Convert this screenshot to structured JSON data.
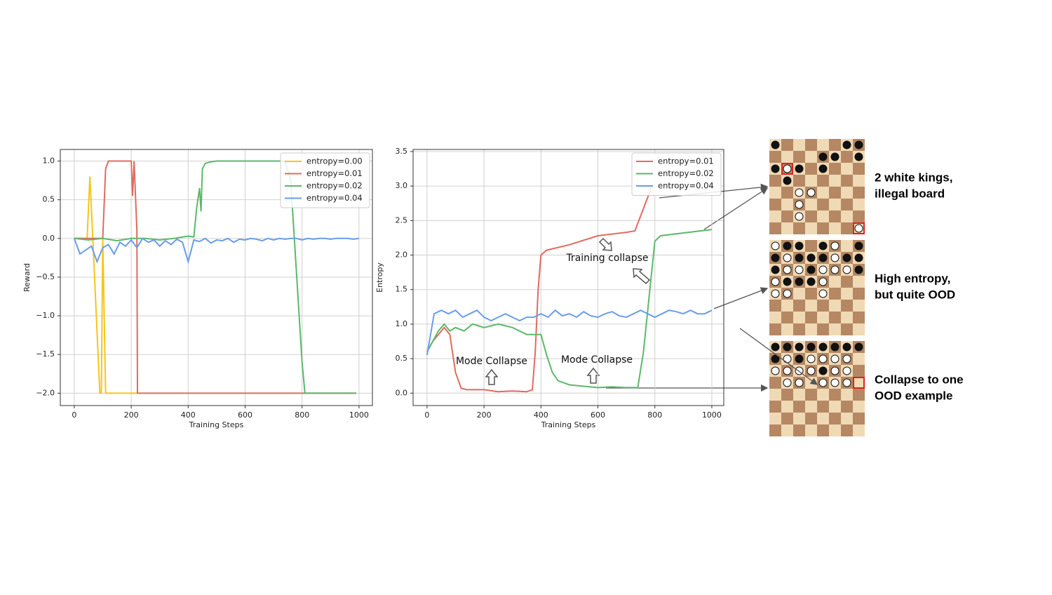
{
  "chart_data": [
    {
      "type": "line",
      "xlabel": "Training Steps",
      "ylabel": "Reward",
      "xlim": [
        -49,
        1047
      ],
      "ylim": [
        -2.16,
        1.15
      ],
      "xticks": [
        0,
        200,
        400,
        600,
        800,
        1000
      ],
      "yticks": [
        {
          "value": -2,
          "label": "−2.0"
        },
        {
          "value": -1.5,
          "label": "−1.5"
        },
        {
          "value": -1,
          "label": "−1.0"
        },
        {
          "value": -0.5,
          "label": "−0.5"
        },
        {
          "value": 0,
          "label": "0.0"
        },
        0.5,
        {
          "value": 1,
          "label": "1.0"
        }
      ],
      "grid": true,
      "legend": "upper right",
      "series": [
        {
          "name": "entropy=0.00",
          "color": "#f5c518",
          "x": [
            0,
            45,
            55,
            65,
            90,
            95,
            100,
            110,
            220
          ],
          "values": [
            0,
            0,
            0.8,
            0,
            -2,
            -2,
            0,
            -2,
            -2
          ]
        },
        {
          "name": "entropy=0.01",
          "color": "#e06b5f",
          "x": [
            0,
            90,
            100,
            110,
            120,
            140,
            200,
            205,
            210,
            220,
            222,
            990
          ],
          "values": [
            0,
            0,
            0,
            0.9,
            1,
            1,
            1,
            0.55,
            1,
            0.1,
            -2,
            -2
          ]
        },
        {
          "name": "entropy=0.02",
          "color": "#5cb86a",
          "x": [
            0,
            50,
            100,
            150,
            200,
            250,
            300,
            350,
            400,
            420,
            430,
            440,
            445,
            450,
            460,
            480,
            500,
            600,
            700,
            740,
            760,
            800,
            810,
            990
          ],
          "values": [
            0,
            -0.02,
            0,
            -0.03,
            0,
            0,
            -0.02,
            0,
            0.03,
            0.02,
            0.4,
            0.65,
            0.35,
            0.9,
            0.97,
            0.99,
            1,
            1,
            1,
            1,
            0.75,
            -1.6,
            -2,
            -2
          ]
        },
        {
          "name": "entropy=0.04",
          "color": "#6a9cea",
          "x": [
            0,
            20,
            40,
            60,
            80,
            100,
            120,
            140,
            160,
            180,
            200,
            220,
            240,
            260,
            280,
            300,
            320,
            340,
            360,
            380,
            400,
            420,
            440,
            460,
            480,
            500,
            520,
            540,
            560,
            580,
            600,
            620,
            640,
            660,
            680,
            700,
            720,
            740,
            760,
            780,
            800,
            820,
            840,
            860,
            880,
            900,
            920,
            940,
            960,
            980,
            1000
          ],
          "values": [
            0,
            -0.2,
            -0.15,
            -0.1,
            -0.3,
            -0.12,
            -0.08,
            -0.2,
            -0.05,
            -0.1,
            -0.02,
            -0.12,
            0,
            -0.05,
            -0.02,
            -0.1,
            -0.03,
            -0.08,
            -0.01,
            -0.05,
            -0.3,
            -0.02,
            -0.04,
            0,
            -0.06,
            -0.02,
            -0.03,
            0,
            -0.05,
            -0.01,
            -0.02,
            0,
            -0.01,
            -0.03,
            0,
            -0.02,
            0,
            -0.01,
            0,
            0,
            -0.02,
            0,
            -0.01,
            0,
            0,
            -0.01,
            0,
            0,
            0,
            -0.01,
            0
          ]
        }
      ]
    },
    {
      "type": "line",
      "xlabel": "Training Steps",
      "ylabel": "Entropy",
      "xlim": [
        -49,
        1042
      ],
      "ylim": [
        -0.18,
        3.53
      ],
      "xticks": [
        0,
        200,
        400,
        600,
        800,
        1000
      ],
      "yticks": [
        {
          "value": 0,
          "label": "0.0"
        },
        0.5,
        {
          "value": 1,
          "label": "1.0"
        },
        1.5,
        {
          "value": 2,
          "label": "2.0"
        },
        2.5,
        {
          "value": 3,
          "label": "3.0"
        },
        3.5
      ],
      "grid": true,
      "legend": "upper right",
      "annotations": [
        "Mode Collapse",
        "Mode Collapse",
        "Training collapse"
      ],
      "series": [
        {
          "name": "entropy=0.01",
          "color": "#e06b5f",
          "x": [
            0,
            20,
            40,
            60,
            80,
            100,
            120,
            140,
            200,
            250,
            300,
            350,
            370,
            380,
            390,
            400,
            420,
            500,
            600,
            700,
            730,
            790
          ],
          "values": [
            0.6,
            0.75,
            0.85,
            0.95,
            0.85,
            0.3,
            0.07,
            0.05,
            0.05,
            0.02,
            0.03,
            0.02,
            0.05,
            0.6,
            1.5,
            2,
            2.07,
            2.15,
            2.28,
            2.33,
            2.35,
            3
          ]
        },
        {
          "name": "entropy=0.02",
          "color": "#5cb86a",
          "x": [
            0,
            20,
            40,
            60,
            80,
            100,
            130,
            160,
            200,
            250,
            300,
            350,
            400,
            420,
            440,
            460,
            500,
            550,
            600,
            650,
            700,
            720,
            740,
            760,
            780,
            800,
            820,
            1000
          ],
          "values": [
            0.6,
            0.75,
            0.9,
            1,
            0.9,
            0.95,
            0.9,
            1,
            0.95,
            1,
            0.95,
            0.85,
            0.85,
            0.55,
            0.3,
            0.18,
            0.12,
            0.1,
            0.08,
            0.09,
            0.08,
            0.08,
            0.08,
            0.6,
            1.4,
            2.2,
            2.28,
            2.37
          ]
        },
        {
          "name": "entropy=0.04",
          "color": "#6a9cea",
          "x": [
            0,
            25,
            50,
            75,
            100,
            125,
            150,
            175,
            200,
            225,
            250,
            275,
            300,
            325,
            350,
            375,
            400,
            425,
            450,
            475,
            500,
            525,
            550,
            575,
            600,
            625,
            650,
            675,
            700,
            725,
            750,
            775,
            800,
            825,
            850,
            875,
            900,
            925,
            950,
            975,
            1000
          ],
          "values": [
            0.55,
            1.15,
            1.2,
            1.15,
            1.2,
            1.1,
            1.15,
            1.2,
            1.1,
            1.05,
            1.1,
            1.15,
            1.1,
            1.05,
            1.1,
            1.1,
            1.15,
            1.1,
            1.2,
            1.12,
            1.15,
            1.1,
            1.18,
            1.12,
            1.1,
            1.15,
            1.18,
            1.12,
            1.1,
            1.15,
            1.2,
            1.15,
            1.1,
            1.15,
            1.2,
            1.18,
            1.15,
            1.2,
            1.15,
            1.15,
            1.2
          ]
        }
      ]
    }
  ],
  "board_captions": [
    [
      "2 white kings,",
      "illegal board"
    ],
    [
      "High entropy,",
      "but quite OOD"
    ],
    [
      "Collapse to one",
      "OOD example"
    ]
  ]
}
